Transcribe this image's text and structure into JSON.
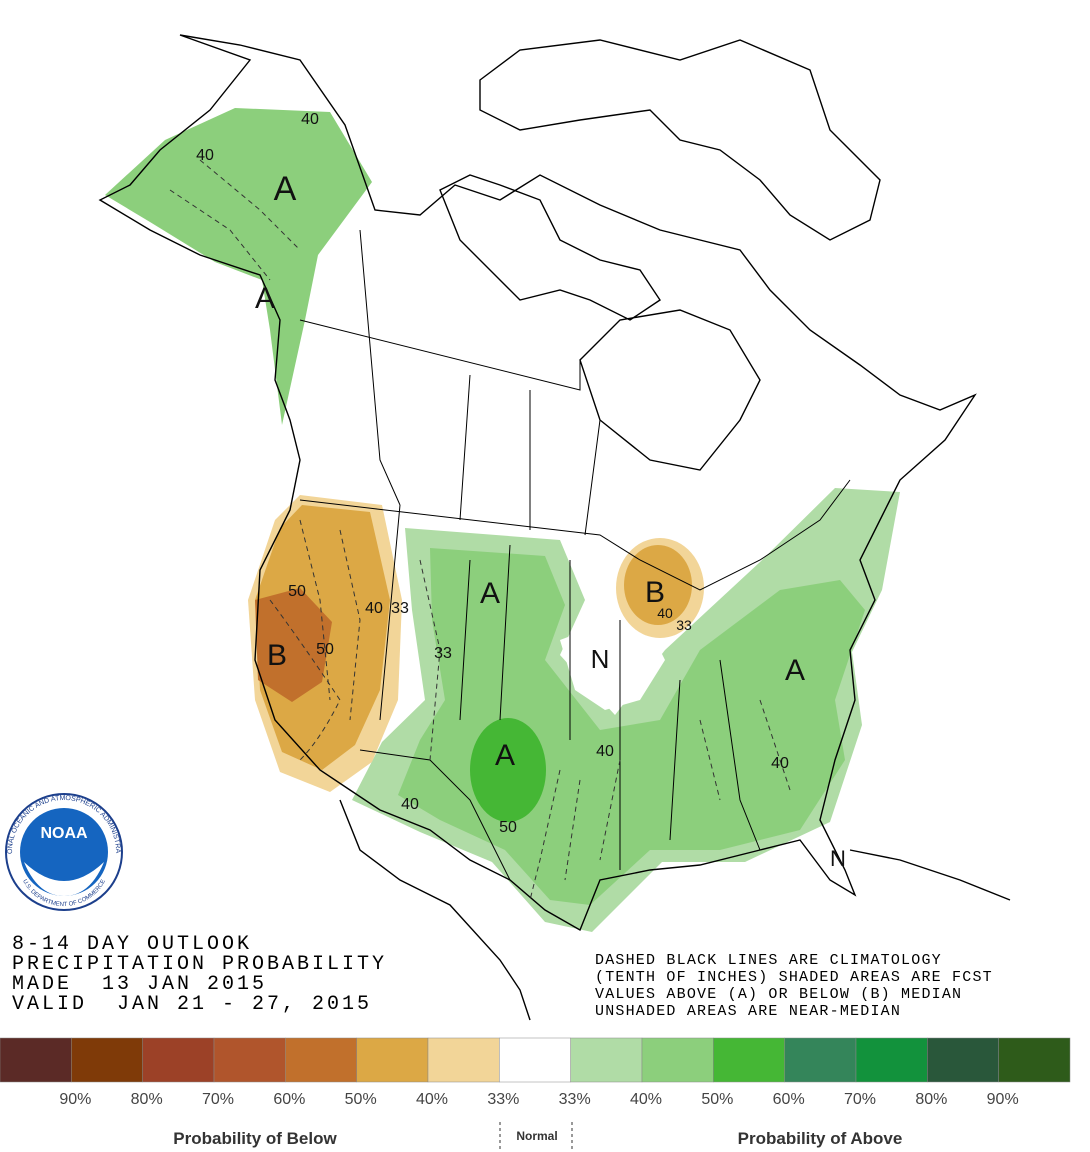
{
  "outlook": {
    "lines": [
      "8-14 DAY OUTLOOK",
      "PRECIPITATION PROBABILITY",
      "MADE  13 JAN 2015",
      "VALID  JAN 21 - 27, 2015"
    ]
  },
  "notes": {
    "lines": [
      "DASHED BLACK LINES ARE CLIMATOLOGY",
      "(TENTH OF INCHES) SHADED AREAS ARE FCST",
      "VALUES ABOVE (A) OR BELOW (B) MEDIAN",
      "UNSHADED AREAS ARE NEAR-MEDIAN"
    ]
  },
  "map": {
    "labels": [
      "A",
      "A",
      "40",
      "40",
      "B",
      "50",
      "50",
      "40",
      "33",
      "33",
      "A",
      "B",
      "40",
      "33",
      "N",
      "A",
      "50",
      "40",
      "40",
      "A",
      "40",
      "N"
    ]
  },
  "logo": {
    "name": "NOAA",
    "agency": "NATIONAL OCEANIC AND ATMOSPHERIC ADMINISTRATION",
    "department": "U.S. DEPARTMENT OF COMMERCE"
  },
  "legend": {
    "colors": [
      "#5b2a26",
      "#7f3a08",
      "#9c4127",
      "#b0552c",
      "#c1702c",
      "#dca845",
      "#f2d598",
      "#ffffff",
      "#b0dca6",
      "#8ccf7c",
      "#45b735",
      "#34855a",
      "#12923c",
      "#29573a",
      "#2e5b1a"
    ],
    "labels": [
      "90%",
      "80%",
      "70%",
      "60%",
      "50%",
      "40%",
      "33%",
      "33%",
      "40%",
      "50%",
      "60%",
      "70%",
      "80%",
      "90%"
    ],
    "below_title": "Probability of Below",
    "normal_title": "Normal",
    "above_title": "Probability of Above"
  }
}
